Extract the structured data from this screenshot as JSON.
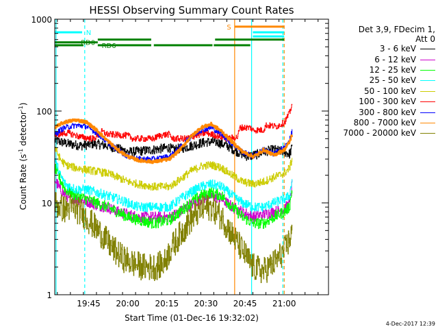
{
  "chart_data": {
    "type": "line",
    "title": "HESSI Observing Summary Count Rates",
    "xlabel": "Start Time (01-Dec-16 19:32:02)",
    "ylabel_main": "Count Rate (s",
    "ylabel_sup1": "-1",
    "ylabel_mid": " detector",
    "ylabel_sup2": "-1",
    "ylabel_end": ")",
    "y_scale": "log",
    "xlim_minutes": [
      0,
      105
    ],
    "ylim": [
      1,
      1000
    ],
    "x_ticks": [
      {
        "m": 13,
        "label": "19:45"
      },
      {
        "m": 28,
        "label": "20:00"
      },
      {
        "m": 43,
        "label": "20:15"
      },
      {
        "m": 58,
        "label": "20:30"
      },
      {
        "m": 73,
        "label": "20:45"
      },
      {
        "m": 88,
        "label": "21:00"
      }
    ],
    "y_ticks": [
      {
        "v": 1,
        "label": "1"
      },
      {
        "v": 10,
        "label": "10"
      },
      {
        "v": 100,
        "label": "100"
      },
      {
        "v": 1000,
        "label": "1000"
      }
    ],
    "legend_header": [
      "Det 3,9, FDecim 1,",
      "Att 0"
    ],
    "series": [
      {
        "name": "3 - 6 keV",
        "color": "#000000",
        "x": [
          0,
          5,
          10,
          15,
          20,
          28,
          30,
          38,
          44,
          45,
          50,
          55,
          58,
          62,
          66,
          70,
          74,
          78,
          80,
          84,
          88,
          90,
          91
        ],
        "y": [
          48,
          44,
          42,
          44,
          42,
          36,
          36,
          38,
          40,
          38,
          40,
          44,
          46,
          46,
          42,
          36,
          32,
          34,
          36,
          38,
          36,
          34,
          40
        ]
      },
      {
        "name": "6 - 12 keV",
        "color": "#cc00cc",
        "x": [
          0,
          2,
          4,
          8,
          12,
          16,
          20,
          24,
          28,
          32,
          38,
          44,
          48,
          52,
          56,
          60,
          64,
          68,
          72,
          76,
          80,
          84,
          88,
          90,
          91
        ],
        "y": [
          18,
          14,
          12,
          11,
          10.5,
          9.5,
          9,
          8,
          7.5,
          7,
          7,
          7,
          8,
          9.5,
          11,
          12,
          11,
          9,
          8,
          7,
          7.5,
          8,
          8.5,
          10,
          16
        ]
      },
      {
        "name": "12 - 25 keV",
        "color": "#00ff00",
        "x": [
          0,
          2,
          4,
          8,
          12,
          16,
          20,
          24,
          28,
          32,
          38,
          44,
          48,
          52,
          56,
          60,
          64,
          68,
          72,
          76,
          80,
          84,
          88,
          90,
          91
        ],
        "y": [
          24,
          18,
          14,
          12,
          11,
          10,
          9,
          8,
          7,
          6.5,
          6,
          6.5,
          8,
          10,
          12,
          13,
          12,
          9,
          7,
          6,
          6,
          7,
          8,
          9,
          14
        ]
      },
      {
        "name": "25 - 50 keV",
        "color": "#00ffff",
        "x": [
          0,
          2,
          4,
          8,
          12,
          16,
          20,
          24,
          28,
          32,
          38,
          44,
          48,
          52,
          56,
          60,
          64,
          68,
          72,
          76,
          80,
          84,
          88,
          90,
          91
        ],
        "y": [
          30,
          20,
          16,
          14,
          14,
          13,
          12,
          11,
          10,
          9,
          9,
          9,
          11,
          13,
          15,
          16,
          15,
          12,
          10,
          9,
          9,
          10,
          11,
          12,
          18
        ]
      },
      {
        "name": "50 - 100 keV",
        "color": "#cccc00",
        "x": [
          0,
          2,
          4,
          8,
          12,
          16,
          20,
          24,
          28,
          32,
          38,
          44,
          48,
          52,
          56,
          60,
          64,
          68,
          72,
          76,
          80,
          84,
          88,
          90,
          91
        ],
        "y": [
          40,
          30,
          26,
          24,
          23,
          22,
          21,
          19,
          17,
          16,
          15,
          15,
          18,
          22,
          25,
          26,
          24,
          20,
          17,
          16,
          17,
          19,
          21,
          24,
          30
        ]
      },
      {
        "name": "100 - 300 keV",
        "color": "#ff0000",
        "x": [
          0,
          5,
          10,
          15,
          18,
          20,
          28,
          30,
          38,
          40,
          44,
          45,
          50,
          55,
          58,
          62,
          66,
          70,
          71,
          75,
          76,
          80,
          81,
          85,
          88,
          90,
          91
        ],
        "y": [
          55,
          58,
          52,
          50,
          60,
          56,
          54,
          50,
          50,
          54,
          56,
          50,
          50,
          55,
          58,
          54,
          50,
          52,
          66,
          66,
          62,
          62,
          70,
          68,
          75,
          95,
          120
        ]
      },
      {
        "name": "300 - 800 keV",
        "color": "#0000ff",
        "x": [
          0,
          2,
          4,
          8,
          12,
          16,
          20,
          24,
          28,
          32,
          38,
          44,
          48,
          52,
          56,
          60,
          64,
          68,
          72,
          76,
          80,
          84,
          88,
          90,
          91
        ],
        "y": [
          55,
          62,
          66,
          70,
          68,
          58,
          46,
          38,
          32,
          30,
          30,
          32,
          40,
          52,
          62,
          66,
          56,
          44,
          36,
          32,
          38,
          34,
          40,
          48,
          60
        ]
      },
      {
        "name": "800 - 7000 keV",
        "color": "#ff8800",
        "x": [
          0,
          2,
          4,
          8,
          12,
          16,
          20,
          24,
          28,
          32,
          38,
          44,
          48,
          52,
          56,
          60,
          64,
          68,
          72,
          76,
          78,
          80,
          84,
          88,
          90,
          91
        ],
        "y": [
          65,
          72,
          76,
          80,
          76,
          62,
          48,
          38,
          32,
          29,
          28,
          30,
          38,
          52,
          66,
          72,
          60,
          46,
          36,
          32,
          34,
          38,
          33,
          38,
          46,
          56
        ]
      },
      {
        "name": "7000 - 20000 keV",
        "color": "#808000",
        "x": [
          0,
          2,
          4,
          6,
          10,
          14,
          18,
          22,
          26,
          30,
          34,
          38,
          42,
          44,
          48,
          52,
          56,
          60,
          64,
          68,
          72,
          76,
          80,
          84,
          88,
          90,
          91
        ],
        "y": [
          10,
          9,
          8.5,
          9,
          8,
          6,
          4.5,
          3.2,
          2.5,
          2.2,
          2,
          2,
          2.2,
          3,
          4.5,
          6.5,
          8.5,
          9,
          7,
          4.5,
          3,
          2,
          1.8,
          2.2,
          3,
          4,
          5
        ]
      }
    ],
    "segments": [
      {
        "label": "N",
        "color": "#00ffff",
        "y": 720,
        "spans": [
          [
            0,
            10.5
          ]
        ],
        "label_m": 12
      },
      {
        "label": "RD0",
        "color": "#008000",
        "y": 560,
        "spans": [
          [
            0,
            16.5
          ]
        ],
        "label_m": 10
      },
      {
        "label": "RD6",
        "color": "#008000",
        "y": 520,
        "spans": [
          [
            0,
            11
          ],
          [
            16.5,
            37
          ],
          [
            38,
            60.5
          ],
          [
            61,
            75
          ]
        ],
        "label_m": 18
      },
      {
        "label": "",
        "color": "#008000",
        "y": 600,
        "spans": [
          [
            16.5,
            37
          ],
          [
            61.5,
            88
          ]
        ],
        "label_m": 0
      },
      {
        "label": "S",
        "color": "#ff8800",
        "y": 830,
        "spans": [
          [
            69,
            88
          ]
        ],
        "label_m": 66
      },
      {
        "label": "",
        "color": "#00ffff",
        "y": 720,
        "spans": [
          [
            76,
            88
          ]
        ],
        "label_m": 0
      },
      {
        "label": "",
        "color": "#00ffff",
        "y": 650,
        "spans": [
          [
            76,
            88
          ]
        ],
        "label_m": 0
      }
    ],
    "vlines": [
      {
        "m": 0.5,
        "color": "#00ffff",
        "dash": false
      },
      {
        "m": 11.5,
        "color": "#00ffff",
        "dash": true
      },
      {
        "m": 69,
        "color": "#ff8800",
        "dash": false
      },
      {
        "m": 75.5,
        "color": "#00ffff",
        "dash": false
      },
      {
        "m": 87.5,
        "color": "#00ffff",
        "dash": true
      },
      {
        "m": 88,
        "color": "#ff8800",
        "dash": true
      }
    ]
  },
  "timestamp": "4-Dec-2017 12:39"
}
